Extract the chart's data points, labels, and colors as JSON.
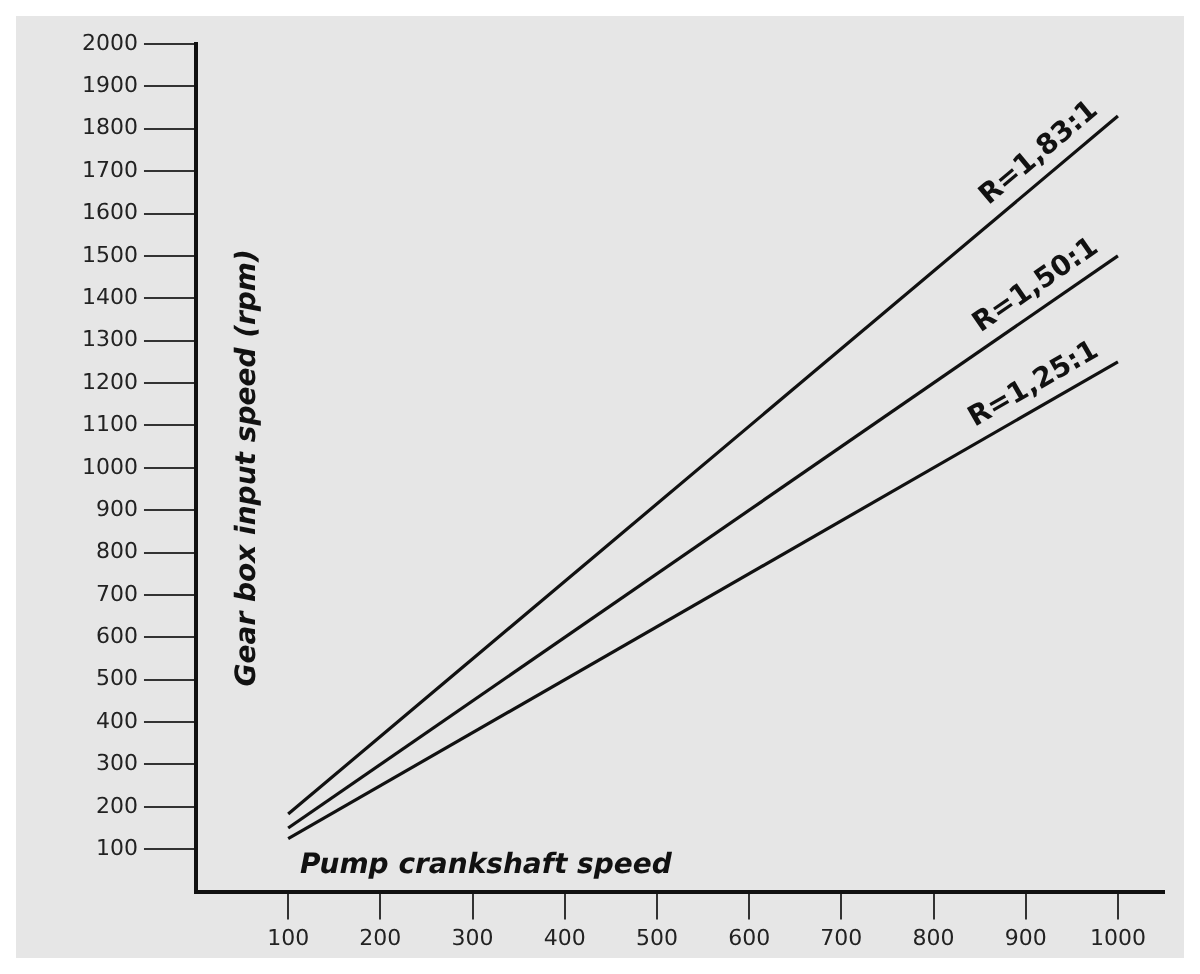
{
  "chart_data": {
    "type": "line",
    "xlabel": "Pump crankshaft speed",
    "ylabel": "Gear box input speed (rpm)",
    "xlim": [
      0,
      1050
    ],
    "ylim": [
      0,
      2000
    ],
    "xticks": [
      100,
      200,
      300,
      400,
      500,
      600,
      700,
      800,
      900,
      1000
    ],
    "yticks": [
      100,
      200,
      300,
      400,
      500,
      600,
      700,
      800,
      900,
      1000,
      1100,
      1200,
      1300,
      1400,
      1500,
      1600,
      1700,
      1800,
      1900,
      2000
    ],
    "grid": false,
    "legend": false,
    "marker": "none",
    "line_style": "solid",
    "x": [
      100,
      1000
    ],
    "series": [
      {
        "name": "R=1,83:1",
        "color": "#111111",
        "values": [
          183,
          1830
        ]
      },
      {
        "name": "R=1,50:1",
        "color": "#111111",
        "values": [
          150,
          1500
        ]
      },
      {
        "name": "R=1,25:1",
        "color": "#111111",
        "values": [
          125,
          1250
        ]
      }
    ]
  }
}
